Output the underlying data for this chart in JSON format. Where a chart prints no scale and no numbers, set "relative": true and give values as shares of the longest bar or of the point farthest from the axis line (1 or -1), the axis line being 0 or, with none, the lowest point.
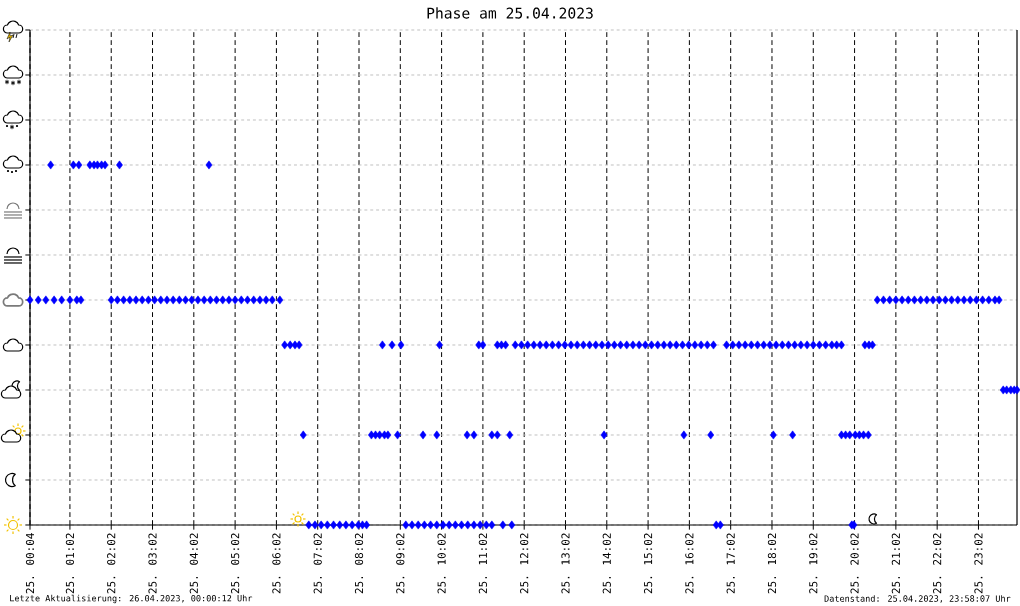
{
  "chart_data": {
    "type": "scatter",
    "title": "Phase am 25.04.2023",
    "annotations": [
      "Letzte Aktualisierung: 26.04.2023, 00:00:12 Uhr",
      "Datenstand: 25.04.2023, 23:58:07 Uhr"
    ],
    "x": [
      "2023-04-25T00:04",
      "2023-04-25T00:16",
      "2023-04-25T00:27",
      "2023-04-25T00:39",
      "2023-04-25T00:50",
      "2023-04-25T01:02",
      "2023-04-25T01:12",
      "2023-04-25T01:18",
      "2023-04-25T00:34",
      "2023-04-25T01:07",
      "2023-04-25T01:15",
      "2023-04-25T01:31",
      "2023-04-25T01:37",
      "2023-04-25T01:42",
      "2023-04-25T01:48",
      "2023-04-25T01:53",
      "2023-04-25T02:14",
      "2023-04-25T04:24",
      "2023-04-25T02:02",
      "2023-04-25T02:11",
      "2023-04-25T02:20",
      "2023-04-25T02:29",
      "2023-04-25T02:38",
      "2023-04-25T02:47",
      "2023-04-25T02:56",
      "2023-04-25T03:05",
      "2023-04-25T03:14",
      "2023-04-25T03:23",
      "2023-04-25T03:32",
      "2023-04-25T03:41",
      "2023-04-25T03:50",
      "2023-04-25T03:59",
      "2023-04-25T04:08",
      "2023-04-25T04:17",
      "2023-04-25T04:26",
      "2023-04-25T04:35",
      "2023-04-25T04:44",
      "2023-04-25T04:53",
      "2023-04-25T05:02",
      "2023-04-25T05:11",
      "2023-04-25T05:20",
      "2023-04-25T05:29",
      "2023-04-25T05:38",
      "2023-04-25T05:47",
      "2023-04-25T05:56",
      "2023-04-25T06:07",
      "2023-04-25T06:14",
      "2023-04-25T06:22",
      "2023-04-25T06:29",
      "2023-04-25T06:35",
      "2023-04-25T06:41",
      "2023-04-25T06:49",
      "2023-04-25T06:58",
      "2023-04-25T07:07",
      "2023-04-25T07:16",
      "2023-04-25T07:25",
      "2023-04-25T07:34",
      "2023-04-25T07:43",
      "2023-04-25T07:52",
      "2023-04-25T08:01",
      "2023-04-25T08:07",
      "2023-04-25T08:13",
      "2023-04-25T08:20",
      "2023-04-25T08:26",
      "2023-04-25T08:32",
      "2023-04-25T08:39",
      "2023-04-25T08:44",
      "2023-04-25T08:58",
      "2023-04-25T08:36",
      "2023-04-25T08:50",
      "2023-04-25T09:03",
      "2023-04-25T09:10",
      "2023-04-25T09:19",
      "2023-04-25T09:28",
      "2023-04-25T09:37",
      "2023-04-25T09:46",
      "2023-04-25T09:55",
      "2023-04-25T10:04",
      "2023-04-25T10:13",
      "2023-04-25T10:22",
      "2023-04-25T10:31",
      "2023-04-25T10:40",
      "2023-04-25T10:49",
      "2023-04-25T10:58",
      "2023-04-25T11:07",
      "2023-04-25T11:15",
      "2023-04-25T11:31",
      "2023-04-25T11:44",
      "2023-04-25T09:59",
      "2023-04-25T10:56",
      "2023-04-25T11:02",
      "2023-04-25T11:23",
      "2023-04-25T11:29",
      "2023-04-25T11:35",
      "2023-04-25T09:35",
      "2023-04-25T09:55",
      "2023-04-25T10:39",
      "2023-04-25T10:49",
      "2023-04-25T11:15",
      "2023-04-25T11:23",
      "2023-04-25T11:41",
      "2023-04-25T11:49",
      "2023-04-25T11:58",
      "2023-04-25T12:07",
      "2023-04-25T12:16",
      "2023-04-25T12:25",
      "2023-04-25T12:34",
      "2023-04-25T12:43",
      "2023-04-25T12:52",
      "2023-04-25T13:01",
      "2023-04-25T13:10",
      "2023-04-25T13:19",
      "2023-04-25T13:28",
      "2023-04-25T13:37",
      "2023-04-25T13:46",
      "2023-04-25T13:55",
      "2023-04-25T14:04",
      "2023-04-25T14:13",
      "2023-04-25T14:22",
      "2023-04-25T14:31",
      "2023-04-25T14:40",
      "2023-04-25T14:49",
      "2023-04-25T14:58",
      "2023-04-25T15:07",
      "2023-04-25T15:16",
      "2023-04-25T15:25",
      "2023-04-25T15:34",
      "2023-04-25T15:43",
      "2023-04-25T15:52",
      "2023-04-25T16:01",
      "2023-04-25T16:10",
      "2023-04-25T16:19",
      "2023-04-25T16:28",
      "2023-04-25T16:37",
      "2023-04-25T13:58",
      "2023-04-25T15:54",
      "2023-04-25T16:33",
      "2023-04-25T16:41",
      "2023-04-25T16:47",
      "2023-04-25T16:56",
      "2023-04-25T17:05",
      "2023-04-25T17:14",
      "2023-04-25T17:23",
      "2023-04-25T17:32",
      "2023-04-25T17:41",
      "2023-04-25T17:50",
      "2023-04-25T17:59",
      "2023-04-25T18:08",
      "2023-04-25T18:17",
      "2023-04-25T18:26",
      "2023-04-25T18:35",
      "2023-04-25T18:44",
      "2023-04-25T18:53",
      "2023-04-25T19:02",
      "2023-04-25T19:11",
      "2023-04-25T19:20",
      "2023-04-25T19:29",
      "2023-04-25T19:36",
      "2023-04-25T19:43",
      "2023-04-25T18:04",
      "2023-04-25T18:32",
      "2023-04-25T19:43",
      "2023-04-25T19:49",
      "2023-04-25T19:55",
      "2023-04-25T19:58",
      "2023-04-25T20:01",
      "2023-04-25T20:03",
      "2023-04-25T20:09",
      "2023-04-25T20:15",
      "2023-04-25T20:22",
      "2023-04-25T20:17",
      "2023-04-25T20:23",
      "2023-04-25T20:28",
      "2023-04-25T20:35",
      "2023-04-25T20:44",
      "2023-04-25T20:53",
      "2023-04-25T21:02",
      "2023-04-25T21:11",
      "2023-04-25T21:20",
      "2023-04-25T21:29",
      "2023-04-25T21:38",
      "2023-04-25T21:47",
      "2023-04-25T21:56",
      "2023-04-25T22:05",
      "2023-04-25T22:14",
      "2023-04-25T22:23",
      "2023-04-25T22:32",
      "2023-04-25T22:41",
      "2023-04-25T22:50",
      "2023-04-25T22:59",
      "2023-04-25T23:08",
      "2023-04-25T23:17",
      "2023-04-25T23:26",
      "2023-04-25T23:32",
      "2023-04-25T23:38",
      "2023-04-25T23:43",
      "2023-04-25T23:49",
      "2023-04-25T23:54",
      "2023-04-25T23:58"
    ],
    "values": [
      0.625,
      0.625,
      0.625,
      0.625,
      0.625,
      0.625,
      0.625,
      0.625,
      1,
      1,
      1,
      1,
      1,
      1,
      1,
      1,
      1,
      1,
      0.625,
      0.625,
      0.625,
      0.625,
      0.625,
      0.625,
      0.625,
      0.625,
      0.625,
      0.625,
      0.625,
      0.625,
      0.625,
      0.625,
      0.625,
      0.625,
      0.625,
      0.625,
      0.625,
      0.625,
      0.625,
      0.625,
      0.625,
      0.625,
      0.625,
      0.625,
      0.625,
      0.625,
      0.5,
      0.5,
      0.5,
      0.5,
      0.25,
      0,
      0,
      0,
      0,
      0,
      0,
      0,
      0,
      0,
      0,
      0,
      0.25,
      0.25,
      0.25,
      0.25,
      0.25,
      0.25,
      0.5,
      0.5,
      0.5,
      0,
      0,
      0,
      0,
      0,
      0,
      0,
      0,
      0,
      0,
      0,
      0,
      0,
      0,
      0,
      0,
      0,
      0.5,
      0.5,
      0.5,
      0.5,
      0.5,
      0.5,
      0.25,
      0.25,
      0.25,
      0.25,
      0.25,
      0.25,
      0.25,
      0.5,
      0.5,
      0.5,
      0.5,
      0.5,
      0.5,
      0.5,
      0.5,
      0.5,
      0.5,
      0.5,
      0.5,
      0.5,
      0.5,
      0.5,
      0.5,
      0.5,
      0.5,
      0.5,
      0.5,
      0.5,
      0.5,
      0.5,
      0.5,
      0.5,
      0.5,
      0.5,
      0.5,
      0.5,
      0.5,
      0.5,
      0.5,
      0.5,
      0.25,
      0.25,
      0.25,
      0,
      0,
      0.5,
      0.5,
      0.5,
      0.5,
      0.5,
      0.5,
      0.5,
      0.5,
      0.5,
      0.5,
      0.5,
      0.5,
      0.5,
      0.5,
      0.5,
      0.5,
      0.5,
      0.5,
      0.5,
      0.5,
      0.25,
      0.25,
      0.25,
      0.25,
      0.25,
      0,
      0,
      0.25,
      0.25,
      0.25,
      0.25,
      0.5,
      0.5,
      0.5,
      0.625,
      0.625,
      0.625,
      0.625,
      0.625,
      0.625,
      0.625,
      0.625,
      0.625,
      0.625,
      0.625,
      0.625,
      0.625,
      0.625,
      0.625,
      0.625,
      0.625,
      0.625,
      0.625,
      0.625,
      0.625,
      0.375,
      0.375,
      0.375,
      0.375,
      0.375
    ],
    "relative": true,
    "color": "#0000ff",
    "marker": "diamond",
    "xlim": [
      "2023-04-25T00:04",
      "2023-04-25T23:58"
    ],
    "xticks": [
      {
        "value": "2023-04-25T00:04",
        "label": "25. 00:04"
      },
      {
        "value": "2023-04-25T01:02",
        "label": "25. 01:02"
      },
      {
        "value": "2023-04-25T02:02",
        "label": "25. 02:02"
      },
      {
        "value": "2023-04-25T03:02",
        "label": "25. 03:02"
      },
      {
        "value": "2023-04-25T04:02",
        "label": "25. 04:02"
      },
      {
        "value": "2023-04-25T05:02",
        "label": "25. 05:02"
      },
      {
        "value": "2023-04-25T06:02",
        "label": "25. 06:02"
      },
      {
        "value": "2023-04-25T07:02",
        "label": "25. 07:02"
      },
      {
        "value": "2023-04-25T08:02",
        "label": "25. 08:02"
      },
      {
        "value": "2023-04-25T09:02",
        "label": "25. 09:02"
      },
      {
        "value": "2023-04-25T10:02",
        "label": "25. 10:02"
      },
      {
        "value": "2023-04-25T11:02",
        "label": "25. 11:02"
      },
      {
        "value": "2023-04-25T12:02",
        "label": "25. 12:02"
      },
      {
        "value": "2023-04-25T13:02",
        "label": "25. 13:02"
      },
      {
        "value": "2023-04-25T14:02",
        "label": "25. 14:02"
      },
      {
        "value": "2023-04-25T15:02",
        "label": "25. 15:02"
      },
      {
        "value": "2023-04-25T16:02",
        "label": "25. 16:02"
      },
      {
        "value": "2023-04-25T17:02",
        "label": "25. 17:02"
      },
      {
        "value": "2023-04-25T18:02",
        "label": "25. 18:02"
      },
      {
        "value": "2023-04-25T19:02",
        "label": "25. 19:02"
      },
      {
        "value": "2023-04-25T20:02",
        "label": "25. 20:02"
      },
      {
        "value": "2023-04-25T21:02",
        "label": "25. 21:02"
      },
      {
        "value": "2023-04-25T22:02",
        "label": "25. 22:02"
      },
      {
        "value": "2023-04-25T23:02",
        "label": "25. 23:02"
      }
    ],
    "tick_labels": "x",
    "grid": true
  }
}
